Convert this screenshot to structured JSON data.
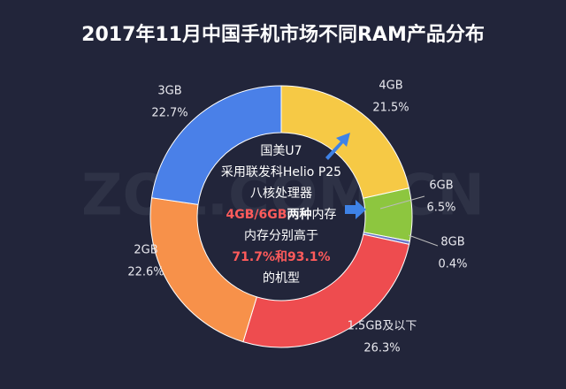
{
  "chart_data": {
    "type": "donut",
    "title": "2017年11月中国手机市场不同RAM产品分布",
    "categories": [
      "4GB",
      "6GB",
      "8GB",
      "1.5GB及以下",
      "2GB",
      "3GB"
    ],
    "values": [
      21.5,
      6.5,
      0.4,
      26.3,
      22.6,
      22.7
    ],
    "value_labels": [
      "21.5%",
      "6.5%",
      "0.4%",
      "26.3%",
      "22.6%",
      "22.7%"
    ],
    "colors": [
      "#f6c945",
      "#8dc63f",
      "#6b78c8",
      "#ee4c4f",
      "#f7914a",
      "#4a80e8"
    ],
    "center_text": [
      [
        "国美U7"
      ],
      [
        "采用联发科Helio P25"
      ],
      [
        "八核处理器"
      ],
      [
        "4GB/6GB",
        "两种",
        "内存"
      ],
      [
        "内存分别高于"
      ],
      [
        "71.7%和93.1%"
      ],
      [
        "的机型"
      ]
    ],
    "highlight_color": "#ff5b5b",
    "watermark": "ZOL.COM.CN"
  }
}
